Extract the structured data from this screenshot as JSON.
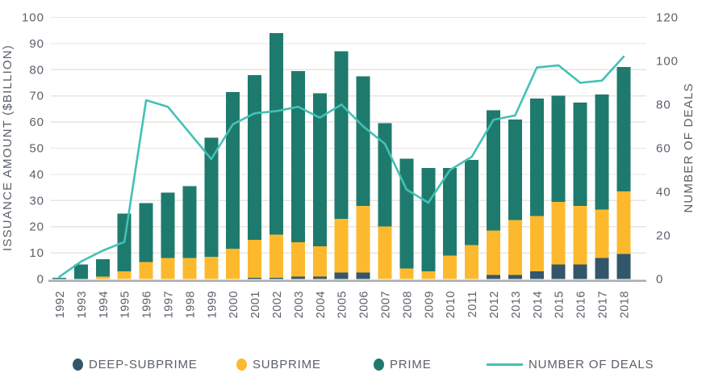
{
  "chart_data": {
    "type": "bar",
    "stacked": true,
    "grid": true,
    "legend_position": "bottom",
    "categories": [
      1992,
      1993,
      1994,
      1995,
      1996,
      1997,
      1998,
      1999,
      2000,
      2001,
      2002,
      2003,
      2004,
      2005,
      2006,
      2007,
      2008,
      2009,
      2010,
      2011,
      2012,
      2013,
      2014,
      2015,
      2016,
      2017,
      2018
    ],
    "series": [
      {
        "name": "DEEP-SUBPRIME",
        "color": "#33566b",
        "values": [
          0,
          0,
          0,
          0,
          0,
          0,
          0,
          0,
          0,
          0.5,
          0.5,
          1,
          1,
          2.5,
          2.5,
          0,
          0,
          0,
          0,
          0,
          1.5,
          1.5,
          3,
          5.5,
          5.5,
          8,
          9.5
        ]
      },
      {
        "name": "SUBPRIME",
        "color": "#fdb92d",
        "values": [
          0,
          0,
          1,
          3,
          6.5,
          8,
          8,
          8.5,
          11.5,
          14.5,
          16.5,
          13,
          11.5,
          20.5,
          25.5,
          20,
          4,
          3,
          9,
          13,
          17,
          21,
          21,
          24,
          22.5,
          18.5,
          24
        ]
      },
      {
        "name": "PRIME",
        "color": "#1f7a6e",
        "values": [
          0.5,
          5.5,
          6.5,
          22,
          22.5,
          25,
          27.5,
          45.5,
          60,
          63,
          77,
          65.5,
          58.5,
          64,
          49.5,
          39.5,
          42,
          39.5,
          33.5,
          32.5,
          46,
          38.5,
          45,
          40.5,
          39.5,
          44,
          47.5
        ]
      }
    ],
    "line_series": {
      "name": "NUMBER OF DEALS",
      "color": "#43c1b4",
      "axis": "right",
      "values": [
        1,
        8,
        13,
        17,
        82,
        79,
        67,
        55,
        71,
        76,
        77,
        79,
        74,
        80,
        70,
        62,
        41,
        35,
        50,
        56,
        73,
        75,
        97,
        98,
        90,
        91,
        102
      ]
    },
    "left_axis": {
      "label": "ISSUANCE AMOUNT ($BILLION)",
      "min": 0,
      "max": 100,
      "tick_step": 10
    },
    "right_axis": {
      "label": "NUMBER OF DEALS",
      "min": 0,
      "max": 120,
      "tick_step": 20
    }
  },
  "legend": {
    "deep_subprime": "DEEP-SUBPRIME",
    "subprime": "SUBPRIME",
    "prime": "PRIME",
    "deals": "NUMBER OF DEALS"
  },
  "colors": {
    "deep_subprime": "#33566b",
    "subprime": "#fdb92d",
    "prime": "#1f7a6e",
    "deals_line": "#43c1b4",
    "gridline": "#e9e5df",
    "axis_line": "#a9abad",
    "text": "#5a6169"
  }
}
